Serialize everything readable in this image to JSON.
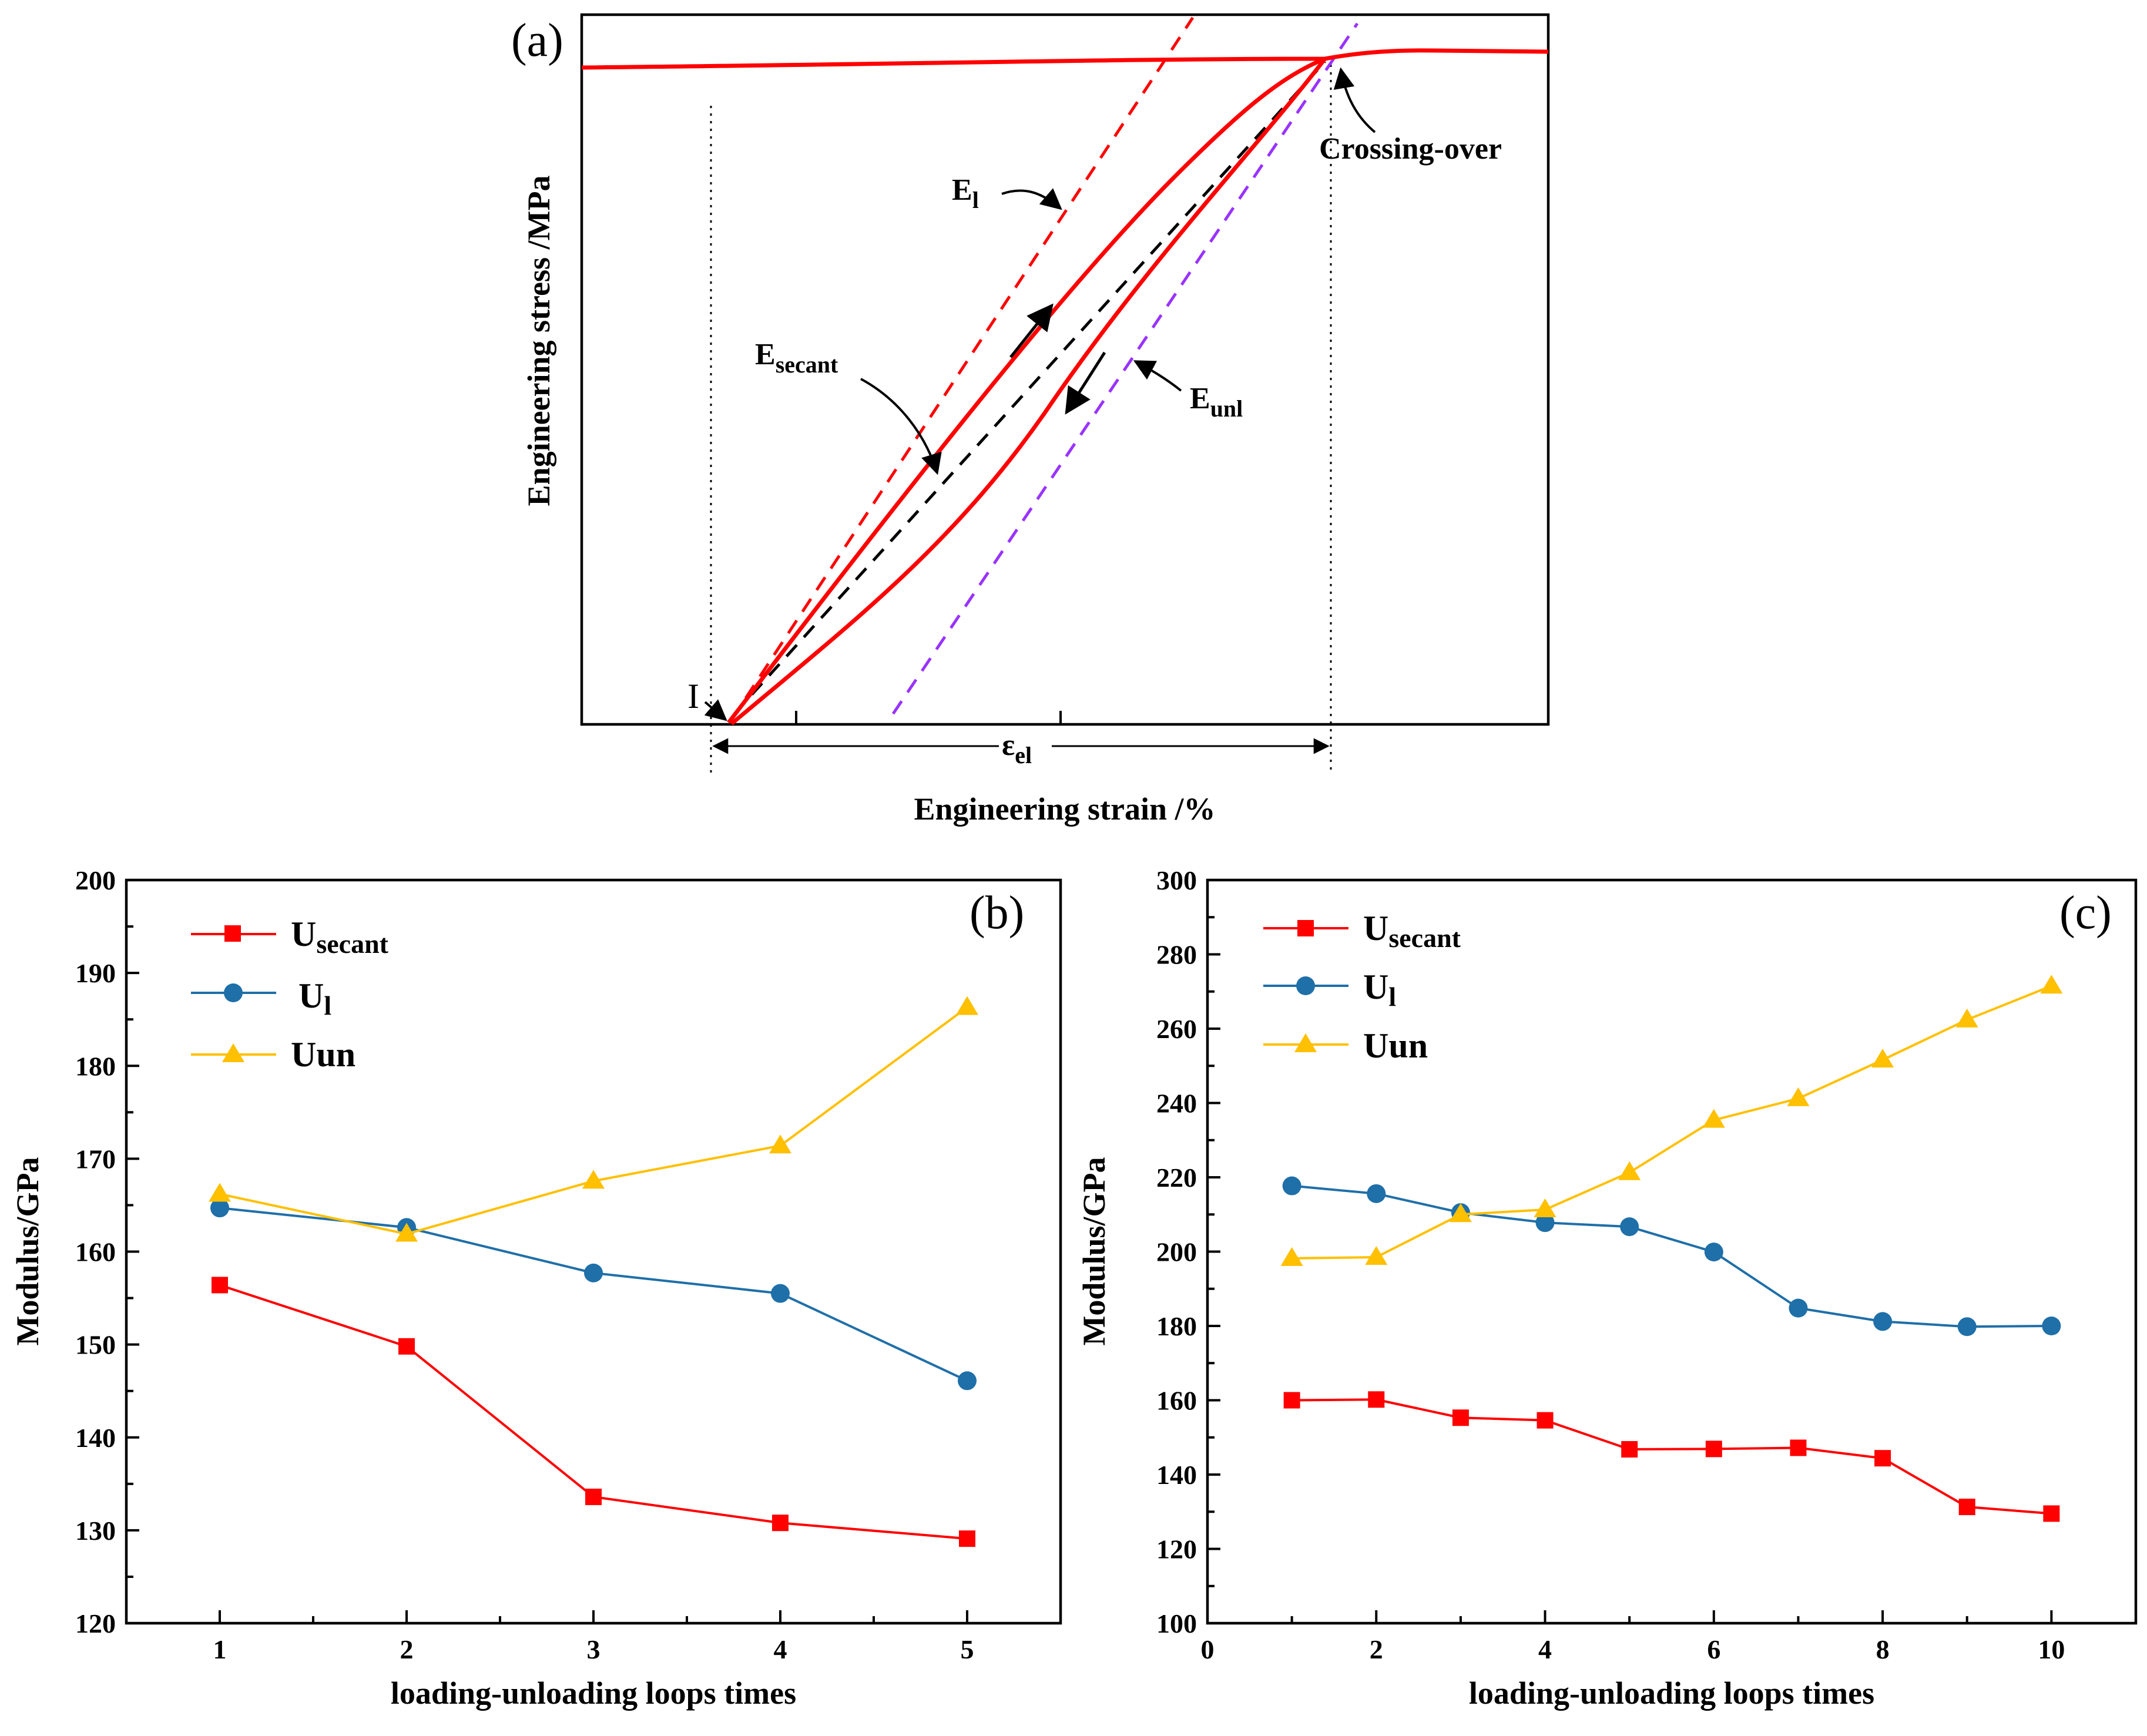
{
  "chart_data": [
    {
      "type": "line",
      "panel": "(a)",
      "title": "",
      "xlabel": "Engineering strain /%",
      "ylabel": "Engineering stress /MPa",
      "annotations": {
        "el": {
          "main": "E",
          "sub": "l"
        },
        "esecant": {
          "main": "E",
          "sub": "secant"
        },
        "eunl": {
          "main": "E",
          "sub": "unl"
        },
        "cross": "Crossing-over",
        "point_i": "I",
        "epsel": {
          "main": "ε",
          "sub": "el"
        }
      },
      "series": [
        {
          "name": "stress-strain curve",
          "color": "#ff0000"
        },
        {
          "name": "E_l tangent",
          "color": "#ff0000"
        },
        {
          "name": "E_secant",
          "color": "#000000"
        },
        {
          "name": "E_unl tangent",
          "color": "#9933ff"
        }
      ]
    },
    {
      "type": "line",
      "panel": "(b)",
      "xlabel": "loading-unloading loops times",
      "ylabel": "Modulus/GPa",
      "xlim": [
        0.5,
        5.5
      ],
      "ylim": [
        120,
        200
      ],
      "xticks": [
        "1",
        "2",
        "3",
        "4",
        "5"
      ],
      "yticks": [
        "120",
        "130",
        "140",
        "150",
        "160",
        "170",
        "180",
        "190",
        "200"
      ],
      "x": [
        1,
        2,
        3,
        4,
        5
      ],
      "series": [
        {
          "name": "U",
          "sub": "secant",
          "marker": "square",
          "color": "#ff0000",
          "values": [
            156.4,
            149.8,
            133.6,
            130.8,
            129.1
          ]
        },
        {
          "name": "U",
          "sub": "l",
          "marker": "circle",
          "color": "#1f6fa8",
          "values": [
            164.7,
            162.6,
            157.7,
            155.5,
            146.1
          ]
        },
        {
          "name": "Uun",
          "sub": "",
          "marker": "triangle",
          "color": "#ffc000",
          "values": [
            166.2,
            161.9,
            167.6,
            171.4,
            186.3
          ]
        }
      ]
    },
    {
      "type": "line",
      "panel": "(c)",
      "xlabel": "loading-unloading loops times",
      "ylabel": "Modulus/GPa",
      "xlim": [
        0,
        11.0
      ],
      "ylim": [
        100,
        300
      ],
      "xticks": [
        "0",
        "2",
        "4",
        "6",
        "8",
        "10"
      ],
      "yticks": [
        "100",
        "120",
        "140",
        "160",
        "180",
        "200",
        "220",
        "240",
        "260",
        "280",
        "300"
      ],
      "x": [
        1,
        2,
        3,
        4,
        5,
        6,
        7,
        8,
        9,
        10
      ],
      "series": [
        {
          "name": "U",
          "sub": "secant",
          "marker": "square",
          "color": "#ff0000",
          "values": [
            160.0,
            160.2,
            155.3,
            154.6,
            146.8,
            146.9,
            147.2,
            144.4,
            131.3,
            129.5
          ]
        },
        {
          "name": "U",
          "sub": "l",
          "marker": "circle",
          "color": "#1f6fa8",
          "values": [
            217.7,
            215.6,
            210.5,
            207.8,
            206.7,
            199.9,
            184.8,
            181.2,
            179.8,
            180.0
          ]
        },
        {
          "name": "Uun",
          "sub": "",
          "marker": "triangle",
          "color": "#ffc000",
          "values": [
            198.2,
            198.5,
            210.0,
            211.3,
            221.3,
            235.4,
            241.2,
            251.6,
            262.4,
            271.5
          ]
        }
      ]
    }
  ]
}
